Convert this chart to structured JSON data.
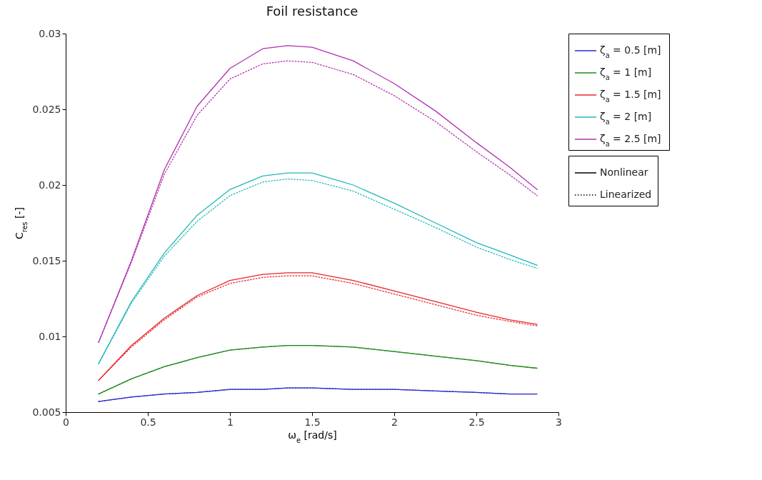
{
  "chart_data": {
    "type": "line",
    "title": "Foil resistance",
    "xlabel": "ω$_{e}$ [rad/s]",
    "ylabel": "C$_{res}$ [-]",
    "x": [
      0.2,
      0.4,
      0.6,
      0.8,
      1.0,
      1.2,
      1.35,
      1.5,
      1.75,
      2.0,
      2.25,
      2.5,
      2.7,
      2.87
    ],
    "xlim": [
      0,
      3
    ],
    "xticks": [
      0,
      0.5,
      1,
      1.5,
      2,
      2.5,
      3
    ],
    "ylim": [
      0.005,
      0.03
    ],
    "yticks": [
      0.005,
      0.01,
      0.015,
      0.02,
      0.025,
      0.03
    ],
    "grid": false,
    "legend": "top right",
    "series": [
      {
        "name": "ζ$_{a}$ = 0.5 [m]",
        "color": "#2a2ad0",
        "line_style": "solid",
        "values": [
          0.0057,
          0.006,
          0.0062,
          0.0063,
          0.0065,
          0.0065,
          0.0066,
          0.0066,
          0.0065,
          0.0065,
          0.0064,
          0.0063,
          0.0062,
          0.0062
        ]
      },
      {
        "name": "ζ$_{a}$ = 1 [m]",
        "color": "#1f8a1f",
        "line_style": "solid",
        "values": [
          0.0062,
          0.0072,
          0.008,
          0.0086,
          0.0091,
          0.0093,
          0.0094,
          0.0094,
          0.0093,
          0.009,
          0.0087,
          0.0084,
          0.0081,
          0.0079
        ]
      },
      {
        "name": "ζ$_{a}$ = 1.5 [m]",
        "color": "#e8262a",
        "line_style": "solid",
        "values": [
          0.0071,
          0.0094,
          0.0112,
          0.0127,
          0.0137,
          0.0141,
          0.0142,
          0.0142,
          0.0137,
          0.013,
          0.0123,
          0.0116,
          0.0111,
          0.0108
        ]
      },
      {
        "name": "ζ$_{a}$ = 2 [m]",
        "color": "#20b8b8",
        "line_style": "solid",
        "values": [
          0.0082,
          0.0123,
          0.0155,
          0.018,
          0.0197,
          0.0206,
          0.0208,
          0.0208,
          0.02,
          0.0188,
          0.0175,
          0.0162,
          0.0154,
          0.0147
        ]
      },
      {
        "name": "ζ$_{a}$ = 2.5 [m]",
        "color": "#b030b0",
        "line_style": "solid",
        "values": [
          0.0096,
          0.015,
          0.021,
          0.0252,
          0.0277,
          0.029,
          0.0292,
          0.0291,
          0.0282,
          0.0267,
          0.0249,
          0.0228,
          0.0212,
          0.0197
        ]
      },
      {
        "color": "#2a2ad0",
        "line_style": "dotted",
        "values": [
          0.0057,
          0.006,
          0.0062,
          0.0063,
          0.0065,
          0.0065,
          0.0066,
          0.0066,
          0.0065,
          0.0065,
          0.0064,
          0.0063,
          0.0062,
          0.0062
        ]
      },
      {
        "color": "#1f8a1f",
        "line_style": "dotted",
        "values": [
          0.0062,
          0.0072,
          0.008,
          0.0086,
          0.0091,
          0.0093,
          0.0094,
          0.0094,
          0.0093,
          0.009,
          0.0087,
          0.0084,
          0.0081,
          0.0079
        ]
      },
      {
        "color": "#e8262a",
        "line_style": "dotted",
        "values": [
          0.0071,
          0.0093,
          0.0111,
          0.0126,
          0.0135,
          0.0139,
          0.014,
          0.014,
          0.0135,
          0.0128,
          0.0121,
          0.0114,
          0.011,
          0.0107
        ]
      },
      {
        "color": "#20b8b8",
        "line_style": "dotted",
        "values": [
          0.0082,
          0.0122,
          0.0153,
          0.0176,
          0.0193,
          0.0202,
          0.0204,
          0.0203,
          0.0196,
          0.0184,
          0.0172,
          0.0159,
          0.0151,
          0.0145
        ]
      },
      {
        "color": "#b030b0",
        "line_style": "dotted",
        "values": [
          0.0096,
          0.0149,
          0.0207,
          0.0246,
          0.027,
          0.028,
          0.0282,
          0.0281,
          0.0273,
          0.0259,
          0.0242,
          0.0222,
          0.0207,
          0.0193
        ]
      },
      {
        "name": "Nonlinear",
        "color": "#000000",
        "line_style": "solid",
        "values": [
          null,
          null,
          null,
          null,
          null,
          null,
          null,
          null,
          null,
          null,
          null,
          null,
          null,
          null
        ]
      },
      {
        "name": "Linearized",
        "color": "#000000",
        "line_style": "dotted",
        "values": [
          null,
          null,
          null,
          null,
          null,
          null,
          null,
          null,
          null,
          null,
          null,
          null,
          null,
          null
        ]
      }
    ]
  }
}
